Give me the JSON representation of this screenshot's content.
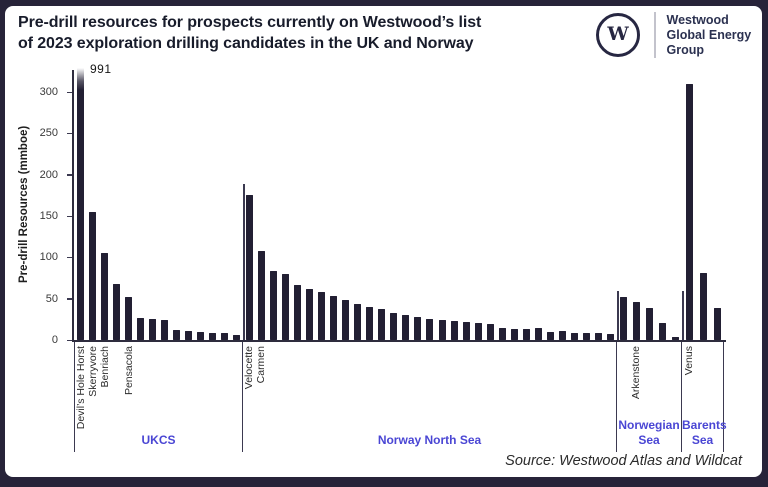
{
  "header": {
    "title_line1": "Pre-drill resources for prospects currently on Westwood’s list",
    "title_line2": "of 2023 exploration drilling candidates in the UK and Norway",
    "logo": {
      "monogram": "W",
      "org_line1": "Westwood",
      "org_line2": "Global Energy",
      "org_line3": "Group"
    }
  },
  "footer": {
    "source": "Source: Westwood Atlas and Wildcat"
  },
  "chart_data": {
    "type": "bar",
    "title": "Pre-drill resources for prospects currently on Westwood’s list of 2023 exploration drilling candidates in the UK and Norway",
    "ylabel": "Pre-drill Resources (mmboe)",
    "yticks": [
      0,
      50,
      100,
      150,
      200,
      250,
      300
    ],
    "ylim": [
      0,
      320
    ],
    "grid": false,
    "legend": false,
    "units": "mmboe",
    "clipped_bar": {
      "prospect": "Devil’s Hole Horst",
      "value": 991,
      "annotation": "991"
    },
    "sections": [
      {
        "name": "UKCS",
        "bars": [
          {
            "label": "Devil’s Hole Horst",
            "value": 991,
            "clipped": true
          },
          {
            "label": "Skerryvore",
            "value": 155
          },
          {
            "label": "Benriach",
            "value": 105
          },
          {
            "label": "",
            "value": 68
          },
          {
            "label": "Pensacola",
            "value": 52
          },
          {
            "label": "",
            "value": 27
          },
          {
            "label": "",
            "value": 26
          },
          {
            "label": "",
            "value": 24
          },
          {
            "label": "",
            "value": 12
          },
          {
            "label": "",
            "value": 11
          },
          {
            "label": "",
            "value": 10
          },
          {
            "label": "",
            "value": 9
          },
          {
            "label": "",
            "value": 8
          },
          {
            "label": "",
            "value": 6
          }
        ]
      },
      {
        "name": "Norway North Sea",
        "bars": [
          {
            "label": "Velocette",
            "value": 176
          },
          {
            "label": "Carmen",
            "value": 108
          },
          {
            "label": "",
            "value": 84
          },
          {
            "label": "",
            "value": 80
          },
          {
            "label": "",
            "value": 67
          },
          {
            "label": "",
            "value": 62
          },
          {
            "label": "",
            "value": 58
          },
          {
            "label": "",
            "value": 53
          },
          {
            "label": "",
            "value": 48
          },
          {
            "label": "",
            "value": 44
          },
          {
            "label": "",
            "value": 40
          },
          {
            "label": "",
            "value": 37
          },
          {
            "label": "",
            "value": 33
          },
          {
            "label": "",
            "value": 30
          },
          {
            "label": "",
            "value": 28
          },
          {
            "label": "",
            "value": 26
          },
          {
            "label": "",
            "value": 24
          },
          {
            "label": "",
            "value": 23
          },
          {
            "label": "",
            "value": 22
          },
          {
            "label": "",
            "value": 21
          },
          {
            "label": "",
            "value": 19
          },
          {
            "label": "",
            "value": 15
          },
          {
            "label": "",
            "value": 13
          },
          {
            "label": "",
            "value": 13
          },
          {
            "label": "",
            "value": 14
          },
          {
            "label": "",
            "value": 10
          },
          {
            "label": "",
            "value": 11
          },
          {
            "label": "",
            "value": 8
          },
          {
            "label": "",
            "value": 8
          },
          {
            "label": "",
            "value": 8
          },
          {
            "label": "",
            "value": 7
          }
        ]
      },
      {
        "name": "Norwegian Sea",
        "bars": [
          {
            "label": "",
            "value": 52
          },
          {
            "label": "Arkenstone",
            "value": 46
          },
          {
            "label": "",
            "value": 39
          },
          {
            "label": "",
            "value": 21
          },
          {
            "label": "",
            "value": 4
          }
        ]
      },
      {
        "name": "Barents Sea",
        "bars": [
          {
            "label": "Venus",
            "value": 310
          },
          {
            "label": "",
            "value": 81
          },
          {
            "label": "",
            "value": 39
          }
        ]
      }
    ],
    "colors": {
      "bar": "#221F33",
      "section_label": "#4A46D4",
      "frame": "#272339",
      "axis": "#2E2C3E"
    }
  }
}
